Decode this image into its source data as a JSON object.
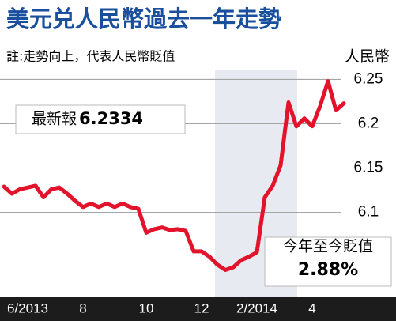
{
  "chart_data": {
    "type": "line",
    "title": "美元兑人民幣過去一年走勢",
    "subtitle": "註:走勢向上，代表人民幣貶值",
    "y_label": "人民幣",
    "annotations": [
      "最新報",
      "6.2334",
      "今年至今貶值",
      "2.88%"
    ],
    "categories": [
      null,
      null,
      null,
      "6/2013",
      null,
      null,
      null,
      null,
      null,
      null,
      "8",
      null,
      null,
      null,
      null,
      null,
      null,
      null,
      "10",
      null,
      null,
      null,
      null,
      null,
      null,
      "12",
      null,
      null,
      null,
      null,
      null,
      null,
      "2/2014",
      null,
      null,
      null,
      null,
      null,
      null,
      "4",
      null,
      null,
      null,
      null
    ],
    "series": [
      {
        "name": "人民幣",
        "color": "#e3132c",
        "values": [
          6.129,
          6.121,
          6.126,
          6.128,
          6.13,
          6.117,
          6.126,
          6.128,
          6.121,
          6.113,
          6.106,
          6.11,
          6.106,
          6.11,
          6.106,
          6.11,
          6.106,
          6.104,
          6.077,
          6.081,
          6.083,
          6.08,
          6.081,
          6.079,
          6.056,
          6.056,
          6.05,
          6.041,
          6.035,
          6.038,
          6.046,
          6.05,
          6.055,
          6.117,
          6.13,
          6.153,
          6.224,
          6.197,
          6.206,
          6.197,
          6.22,
          6.248,
          6.215,
          6.223
        ]
      }
    ],
    "ylim": [
      6.006,
      6.261
    ],
    "yticks": [
      6.1,
      6.15,
      6.2,
      {
        "value": 6.25,
        "label": "6.25"
      }
    ],
    "grid": true
  }
}
